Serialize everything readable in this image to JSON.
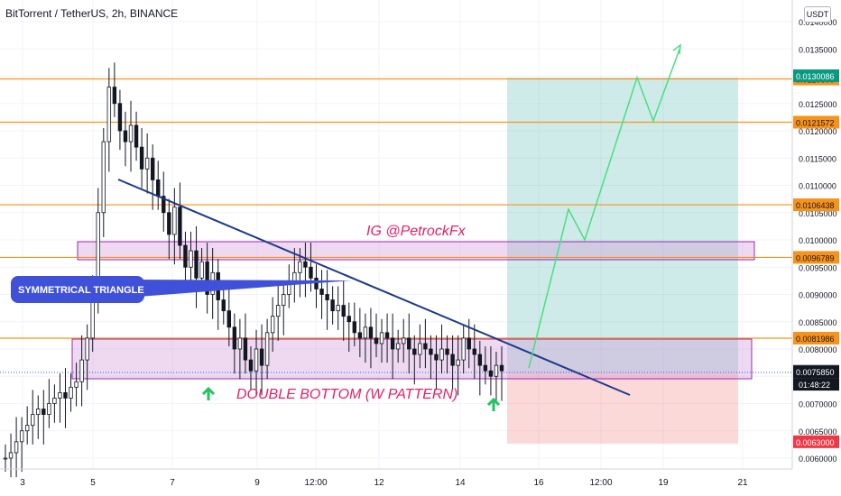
{
  "header": {
    "title": "BitTorrent / TetherUS, 2h, BINANCE",
    "currency_badge": "USDT"
  },
  "chart_data": {
    "type": "candlestick",
    "title": "BitTorrent / TetherUS, 2h, BINANCE",
    "ylim": [
      0.0059,
      0.0141
    ],
    "y_ticks": [
      "0.0140000",
      "0.0135000",
      "0.0130000",
      "0.0125000",
      "0.0120000",
      "0.0115000",
      "0.0110000",
      "0.0105000",
      "0.0100000",
      "0.0095000",
      "0.0090000",
      "0.0085000",
      "0.0080000",
      "0.0075000",
      "0.0070000",
      "0.0065000",
      "0.0060000"
    ],
    "x_ticks": [
      "3",
      "5",
      "7",
      "9",
      "12:00",
      "12",
      "14",
      "16",
      "12:00",
      "19",
      "21"
    ],
    "price_levels": [
      {
        "value": 0.01295,
        "label": "0.0129500",
        "color": "#f7931a"
      },
      {
        "value": 0.0121572,
        "label": "0.0121572",
        "color": "#f7931a"
      },
      {
        "value": 0.0106438,
        "label": "0.0106438",
        "color": "#f7931a"
      },
      {
        "value": 0.0096789,
        "label": "0.0096789",
        "color": "#f7931a"
      },
      {
        "value": 0.0081986,
        "label": "0.0081986",
        "color": "#f7931a"
      }
    ],
    "marker_labels": [
      {
        "value": 0.0130086,
        "label": "0.0130086",
        "color": "#089981"
      },
      {
        "value": 0.0076,
        "label": "0.0076000",
        "color": "#b2b5be"
      },
      {
        "value": 0.007585,
        "label": "0.0075850",
        "color": "#131722"
      },
      {
        "value": 0.0063,
        "label": "0.0063000",
        "color": "#f23645"
      }
    ],
    "countdown": "01:48:22",
    "current_price": 0.007585,
    "zones": [
      {
        "name": "resistance-zone",
        "from": 0.0096789,
        "to": 0.01002,
        "color": "#9c27b0"
      },
      {
        "name": "support-zone",
        "from": 0.00745,
        "to": 0.0081986,
        "color": "#9c27b0"
      }
    ],
    "position": {
      "entry": 0.0076,
      "target": 0.0130086,
      "stop": 0.0063
    },
    "annotations": {
      "triangle_label": "SYMMETRICAL TRIANGLE",
      "double_bottom_label": "DOUBLE BOTTOM (W PATTERN)",
      "watermark_label": "IG @PetrockFx"
    },
    "projection_path": [
      0.0076,
      0.0106,
      0.0098,
      0.01295,
      0.0121572,
      0.0135
    ],
    "trendline": {
      "start": 0.0111,
      "end": 0.00725
    }
  }
}
